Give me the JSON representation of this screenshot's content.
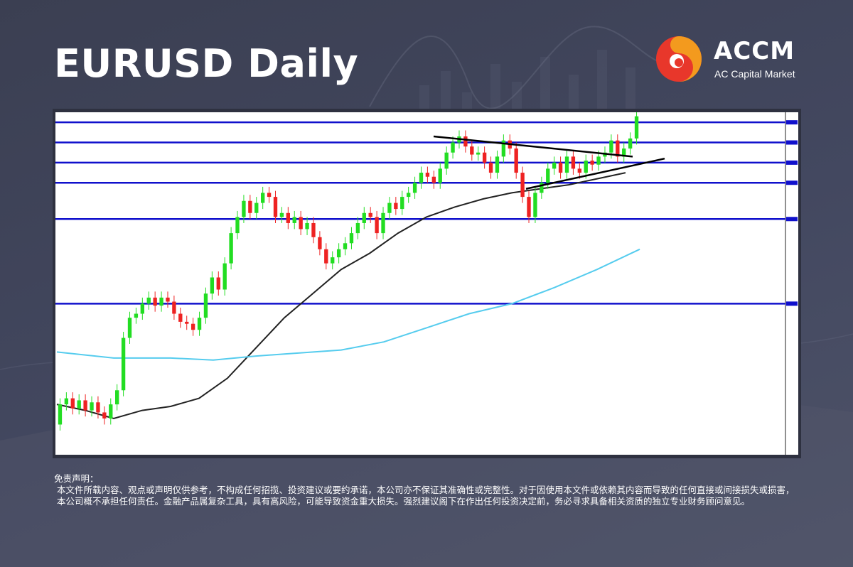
{
  "header": {
    "title": "EURUSD Daily"
  },
  "logo": {
    "name": "ACCM",
    "subtitle": "AC Capital Market"
  },
  "colors": {
    "background": "#3f4357",
    "bull_candle": "#22dd22",
    "bear_candle": "#ee2222",
    "support_resistance": "#1010cc",
    "ma_short": "#222222",
    "ma_long": "#55ccee",
    "trendline": "#000000",
    "logo_red": "#e8372b",
    "logo_orange": "#f39a1e"
  },
  "chart_data": {
    "type": "candlestick",
    "symbol": "EURUSD",
    "timeframe": "Daily",
    "grid": false,
    "ylim": [
      1.02,
      1.19
    ],
    "horizontal_levels": [
      1.185,
      1.175,
      1.165,
      1.155,
      1.137,
      1.095
    ],
    "overlays": [
      {
        "kind": "moving-average",
        "color": "ma_short",
        "points": [
          [
            0,
            1.045
          ],
          [
            40,
            1.042
          ],
          [
            80,
            1.038
          ],
          [
            120,
            1.042
          ],
          [
            160,
            1.044
          ],
          [
            200,
            1.048
          ],
          [
            240,
            1.058
          ],
          [
            280,
            1.073
          ],
          [
            320,
            1.088
          ],
          [
            360,
            1.1
          ],
          [
            400,
            1.112
          ],
          [
            440,
            1.12
          ],
          [
            480,
            1.13
          ],
          [
            520,
            1.138
          ],
          [
            560,
            1.143
          ],
          [
            600,
            1.147
          ],
          [
            640,
            1.15
          ],
          [
            680,
            1.152
          ],
          [
            720,
            1.154
          ],
          [
            760,
            1.157
          ],
          [
            800,
            1.16
          ]
        ]
      },
      {
        "kind": "moving-average",
        "color": "ma_long",
        "points": [
          [
            0,
            1.071
          ],
          [
            80,
            1.068
          ],
          [
            160,
            1.068
          ],
          [
            220,
            1.067
          ],
          [
            280,
            1.069
          ],
          [
            320,
            1.07
          ],
          [
            400,
            1.072
          ],
          [
            460,
            1.076
          ],
          [
            520,
            1.083
          ],
          [
            580,
            1.09
          ],
          [
            640,
            1.095
          ],
          [
            700,
            1.103
          ],
          [
            760,
            1.112
          ],
          [
            820,
            1.122
          ]
        ]
      }
    ],
    "trendlines": [
      {
        "points": [
          [
            530,
            1.178
          ],
          [
            810,
            1.168
          ]
        ]
      },
      {
        "points": [
          [
            660,
            1.152
          ],
          [
            855,
            1.167
          ]
        ]
      }
    ],
    "candles": [
      [
        1.035,
        1.045
      ],
      [
        1.045,
        1.048
      ],
      [
        1.048,
        1.043
      ],
      [
        1.043,
        1.047
      ],
      [
        1.047,
        1.042
      ],
      [
        1.042,
        1.046
      ],
      [
        1.046,
        1.041
      ],
      [
        1.041,
        1.038
      ],
      [
        1.038,
        1.045
      ],
      [
        1.045,
        1.052
      ],
      [
        1.052,
        1.078
      ],
      [
        1.078,
        1.088
      ],
      [
        1.088,
        1.09
      ],
      [
        1.09,
        1.095
      ],
      [
        1.095,
        1.098
      ],
      [
        1.098,
        1.094
      ],
      [
        1.094,
        1.098
      ],
      [
        1.098,
        1.096
      ],
      [
        1.096,
        1.09
      ],
      [
        1.09,
        1.086
      ],
      [
        1.086,
        1.085
      ],
      [
        1.085,
        1.082
      ],
      [
        1.082,
        1.088
      ],
      [
        1.088,
        1.1
      ],
      [
        1.1,
        1.108
      ],
      [
        1.108,
        1.102
      ],
      [
        1.102,
        1.115
      ],
      [
        1.115,
        1.13
      ],
      [
        1.13,
        1.138
      ],
      [
        1.138,
        1.146
      ],
      [
        1.146,
        1.14
      ],
      [
        1.14,
        1.145
      ],
      [
        1.145,
        1.15
      ],
      [
        1.15,
        1.148
      ],
      [
        1.148,
        1.138
      ],
      [
        1.138,
        1.14
      ],
      [
        1.14,
        1.135
      ],
      [
        1.135,
        1.138
      ],
      [
        1.138,
        1.132
      ],
      [
        1.132,
        1.135
      ],
      [
        1.135,
        1.128
      ],
      [
        1.128,
        1.122
      ],
      [
        1.122,
        1.115
      ],
      [
        1.115,
        1.118
      ],
      [
        1.118,
        1.122
      ],
      [
        1.122,
        1.125
      ],
      [
        1.125,
        1.13
      ],
      [
        1.13,
        1.135
      ],
      [
        1.135,
        1.14
      ],
      [
        1.14,
        1.138
      ],
      [
        1.138,
        1.13
      ],
      [
        1.13,
        1.14
      ],
      [
        1.14,
        1.145
      ],
      [
        1.145,
        1.142
      ],
      [
        1.142,
        1.148
      ],
      [
        1.148,
        1.15
      ],
      [
        1.15,
        1.155
      ],
      [
        1.155,
        1.16
      ],
      [
        1.16,
        1.158
      ],
      [
        1.158,
        1.155
      ],
      [
        1.155,
        1.162
      ],
      [
        1.162,
        1.17
      ],
      [
        1.17,
        1.175
      ],
      [
        1.175,
        1.178
      ],
      [
        1.178,
        1.173
      ],
      [
        1.173,
        1.169
      ],
      [
        1.169,
        1.17
      ],
      [
        1.17,
        1.165
      ],
      [
        1.165,
        1.16
      ],
      [
        1.16,
        1.168
      ],
      [
        1.168,
        1.176
      ],
      [
        1.176,
        1.172
      ],
      [
        1.172,
        1.16
      ],
      [
        1.16,
        1.148
      ],
      [
        1.148,
        1.138
      ],
      [
        1.138,
        1.15
      ],
      [
        1.15,
        1.155
      ],
      [
        1.155,
        1.162
      ],
      [
        1.162,
        1.165
      ],
      [
        1.165,
        1.16
      ],
      [
        1.16,
        1.168
      ],
      [
        1.168,
        1.162
      ],
      [
        1.162,
        1.16
      ],
      [
        1.16,
        1.166
      ],
      [
        1.166,
        1.164
      ],
      [
        1.164,
        1.168
      ],
      [
        1.168,
        1.17
      ],
      [
        1.17,
        1.176
      ],
      [
        1.176,
        1.168
      ],
      [
        1.168,
        1.172
      ],
      [
        1.172,
        1.177
      ],
      [
        1.177,
        1.188
      ]
    ]
  },
  "disclaimer": {
    "heading": "免责声明：",
    "body": "本文件所载内容、观点或声明仅供参考，不构成任何招揽、投资建议或要约承诺，本公司亦不保证其准确性或完整性。对于因使用本文件或依赖其内容而导致的任何直接或间接损失或损害，本公司概不承担任何责任。金融产品属复杂工具，具有高风险，可能导致资金重大损失。强烈建议阁下在作出任何投资决定前，务必寻求具备相关资质的独立专业财务顾问意见。"
  }
}
